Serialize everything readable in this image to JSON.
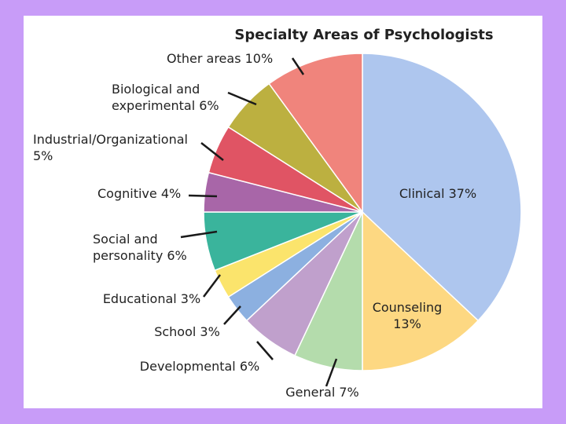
{
  "chart_data": {
    "type": "pie",
    "title": "Specialty Areas of Psychologists",
    "slices": [
      {
        "label": [
          "Clinical 37%"
        ],
        "value": 37,
        "color": "#aec6ee"
      },
      {
        "label": [
          "Counseling",
          "13%"
        ],
        "value": 13,
        "color": "#fdd882"
      },
      {
        "label": [
          "General 7%"
        ],
        "value": 7,
        "color": "#b4dcac"
      },
      {
        "label": [
          "Developmental 6%"
        ],
        "value": 6,
        "color": "#c0a0cc"
      },
      {
        "label": [
          "School 3%"
        ],
        "value": 3,
        "color": "#8cb0e0"
      },
      {
        "label": [
          "Educational 3%"
        ],
        "value": 3,
        "color": "#fbe46c"
      },
      {
        "label": [
          "Social and",
          "personality 6%"
        ],
        "value": 6,
        "color": "#3ab49c"
      },
      {
        "label": [
          "Cognitive 4%"
        ],
        "value": 4,
        "color": "#a866a8"
      },
      {
        "label": [
          "Industrial/Organizational",
          "5%"
        ],
        "value": 5,
        "color": "#e05464"
      },
      {
        "label": [
          "Biological and",
          "experimental 6%"
        ],
        "value": 6,
        "color": "#bcb040"
      },
      {
        "label": [
          "Other areas 10%"
        ],
        "value": 10,
        "color": "#f0847c"
      }
    ]
  }
}
